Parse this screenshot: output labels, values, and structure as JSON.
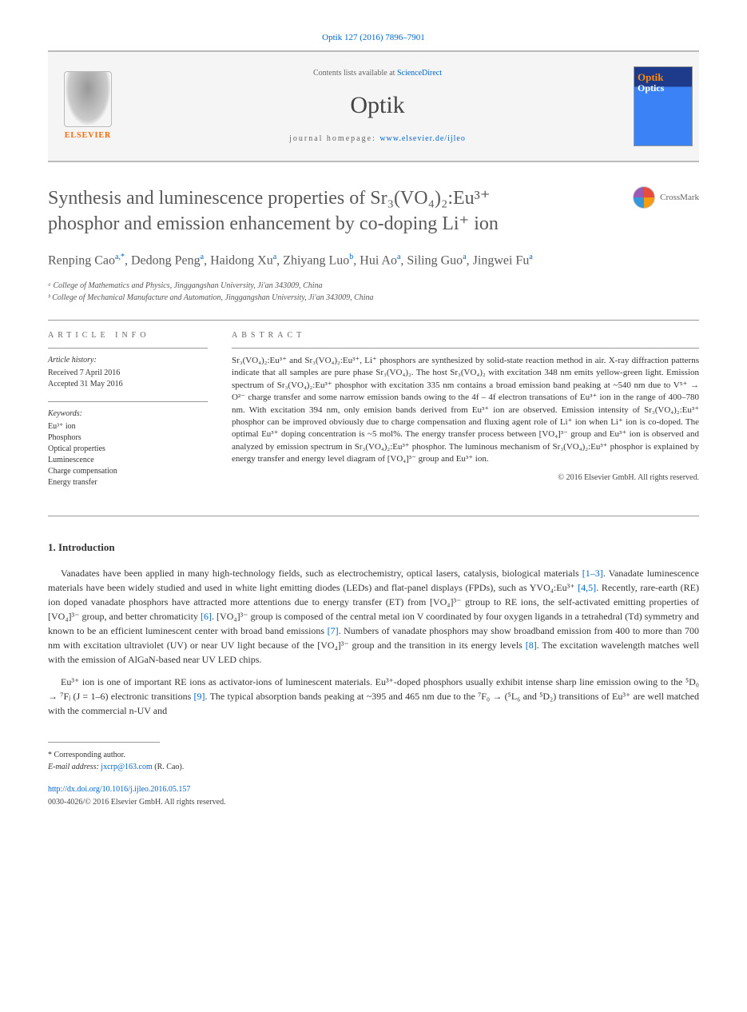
{
  "citation": "Optik 127 (2016) 7896–7901",
  "header": {
    "contents_prefix": "Contents lists available at ",
    "contents_link": "ScienceDirect",
    "journal_name": "Optik",
    "homepage_prefix": "journal homepage: ",
    "homepage_link": "www.elsevier.de/ijleo",
    "elsevier_label": "ELSEVIER"
  },
  "title": "Synthesis and luminescence properties of Sr₃(VO₄)₂:Eu³⁺ phosphor and emission enhancement by co-doping Li⁺ ion",
  "crossmark_label": "CrossMark",
  "authors_html": "Renping Cao<sup>a,*</sup>, Dedong Peng<sup>a</sup>, Haidong Xu<sup>a</sup>, Zhiyang Luo<sup>b</sup>, Hui Ao<sup>a</sup>, Siling Guo<sup>a</sup>, Jingwei Fu<sup>a</sup>",
  "affiliations": [
    "ᵃ College of Mathematics and Physics, Jinggangshan University, Ji'an 343009, China",
    "ᵇ College of Mechanical Manufacture and Automation, Jinggangshan University, Ji'an 343009, China"
  ],
  "article_info_heading": "ARTICLE INFO",
  "abstract_heading": "ABSTRACT",
  "history": {
    "label": "Article history:",
    "received": "Received 7 April 2016",
    "accepted": "Accepted 31 May 2016"
  },
  "keywords": {
    "label": "Keywords:",
    "items": [
      "Eu³⁺ ion",
      "Phosphors",
      "Optical properties",
      "Luminescence",
      "Charge compensation",
      "Energy transfer"
    ]
  },
  "abstract": "Sr₃(VO₄)₂:Eu³⁺ and Sr₃(VO₄)₂:Eu³⁺, Li⁺ phosphors are synthesized by solid-state reaction method in air. X-ray diffraction patterns indicate that all samples are pure phase Sr₃(VO₄)₂. The host Sr₃(VO₄)₂ with excitation 348 nm emits yellow-green light. Emission spectrum of Sr₃(VO₄)₂:Eu³⁺ phosphor with excitation 335 nm contains a broad emission band peaking at ~540 nm due to V⁵⁺ → O²⁻ charge transfer and some narrow emission bands owing to the 4f – 4f electron transations of Eu³⁺ ion in the range of 400–780 nm. With excitation 394 nm, only emision bands derived from Eu³⁺ ion are observed. Emission intensity of Sr₃(VO₄)₂:Eu³⁺ phosphor can be improved obviously due to charge compensation and fluxing agent role of Li⁺ ion when Li⁺ ion is co-doped. The optimal Eu³⁺ doping concentration is ~5 mol%. The energy transfer process between [VO₄]³⁻ group and Eu³⁺ ion is observed and analyzed by emission spectrum in Sr₃(VO₄)₂:Eu³⁺ phosphor. The luminous mechanism of Sr₃(VO₄)₂:Eu³⁺ phosphor is explained by energy transfer and energy level diagram of [VO₄]³⁻ group and Eu³⁺ ion.",
  "abstract_copyright": "© 2016 Elsevier GmbH. All rights reserved.",
  "intro_heading": "1. Introduction",
  "intro_p1": "Vanadates have been applied in many high-technology fields, such as electrochemistry, optical lasers, catalysis, biological materials [1–3]. Vanadate luminescence materials have been widely studied and used in white light emitting diodes (LEDs) and flat-panel displays (FPDs), such as YVO₄:Eu³⁺ [4,5]. Recently, rare-earth (RE) ion doped vanadate phosphors have attracted more attentions due to energy transfer (ET) from [VO₄]³⁻ gtroup to RE ions, the self-activated emitting properties of [VO₄]³⁻ group, and better chromaticity [6]. [VO₄]³⁻ group is composed of the central metal ion V coordinated by four oxygen ligands in a tetrahedral (Td) symmetry and known to be an efficient luminescent center with broad band emissions [7]. Numbers of vanadate phosphors may show broadband emission from 400 to more than 700 nm with excitation ultraviolet (UV) or near UV light because of the [VO₄]³⁻ group and the transition in its energy levels [8]. The excitation wavelength matches well with the emission of AlGaN-based near UV LED chips.",
  "intro_p2": "Eu³⁺ ion is one of important RE ions as activator-ions of luminescent materials. Eu³⁺-doped phosphors usually exhibit intense sharp line emission owing to the ⁵D₀ → ⁷Fⱼ (J = 1–6) electronic transitions [9]. The typical absorption bands peaking at ~395 and 465 nm due to the ⁷F₀ → (⁵L₆ and ⁵D₂) transitions of Eu³⁺ are well matched with the commercial n-UV and",
  "footer": {
    "corresponding_label": "* Corresponding author.",
    "email_label": "E-mail address:",
    "email": "jxcrp@163.com",
    "email_paren": "(R. Cao).",
    "doi": "http://dx.doi.org/10.1016/j.ijleo.2016.05.157",
    "copyright": "0030-4026/© 2016 Elsevier GmbH. All rights reserved."
  },
  "ref_links": {
    "r1_3": "[1–3]",
    "r4_5": "[4,5]",
    "r6": "[6]",
    "r7": "[7]",
    "r8": "[8]",
    "r9": "[9]"
  },
  "colors": {
    "link": "#0066cc",
    "text": "#333333",
    "heading": "#5a5a5a",
    "elsevier_orange": "#ff6600",
    "border_gray": "#bbbbbb"
  }
}
